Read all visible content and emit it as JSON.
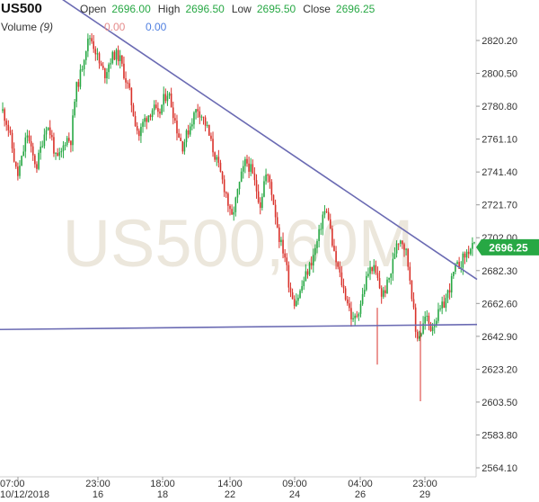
{
  "header": {
    "symbol": "US500",
    "open_label": "Open",
    "open": "2696.00",
    "high_label": "High",
    "high": "2696.50",
    "low_label": "Low",
    "low": "2695.50",
    "close_label": "Close",
    "close": "2696.25",
    "volume_label": "Volume",
    "volume_period": "(9)",
    "volume_value_1": "0.00",
    "volume_value_2": "0.00"
  },
  "watermark": "US500,60M",
  "chart_data": {
    "type": "candlestick",
    "title": "US500",
    "timeframe": "60M",
    "ylim": [
      2556,
      2840
    ],
    "y_ticks": [
      "2820.20",
      "2800.50",
      "2780.80",
      "2761.10",
      "2741.40",
      "2721.70",
      "2702.00",
      "2682.30",
      "2662.60",
      "2642.90",
      "2623.20",
      "2603.50",
      "2583.80",
      "2564.10"
    ],
    "x_ticks": [
      {
        "time": "07:00",
        "date": "10/12/2018"
      },
      {
        "time": "23:00",
        "date": "16"
      },
      {
        "time": "18:00",
        "date": "18"
      },
      {
        "time": "14:00",
        "date": "22"
      },
      {
        "time": "09:00",
        "date": "24"
      },
      {
        "time": "04:00",
        "date": "26"
      },
      {
        "time": "23:00",
        "date": "29"
      }
    ],
    "last_price": "2696.25",
    "colors": {
      "up": "#27a844",
      "down": "#d9322b",
      "trendline": "#6b6bb3",
      "price_tag": "#27a844"
    },
    "trendlines": [
      {
        "name": "descending-resistance",
        "from": {
          "x": 0.115,
          "y": 2845
        },
        "to": {
          "x": 0.885,
          "y": 2677
        }
      },
      {
        "name": "horizontal-support",
        "from": {
          "x": 0.0,
          "y": 2647
        },
        "to": {
          "x": 0.885,
          "y": 2650
        }
      }
    ],
    "series": [
      {
        "name": "US500",
        "values": [
          2778,
          2770,
          2755,
          2738,
          2750,
          2765,
          2752,
          2745,
          2758,
          2770,
          2763,
          2748,
          2752,
          2762,
          2760,
          2790,
          2800,
          2815,
          2823,
          2815,
          2805,
          2800,
          2808,
          2812,
          2810,
          2800,
          2790,
          2775,
          2763,
          2772,
          2776,
          2780,
          2774,
          2784,
          2790,
          2778,
          2765,
          2757,
          2765,
          2773,
          2780,
          2775,
          2768,
          2757,
          2748,
          2738,
          2728,
          2712,
          2725,
          2738,
          2748,
          2743,
          2733,
          2722,
          2740,
          2735,
          2718,
          2700,
          2692,
          2672,
          2664,
          2668,
          2677,
          2684,
          2692,
          2703,
          2718,
          2715,
          2693,
          2683,
          2672,
          2663,
          2651,
          2657,
          2667,
          2680,
          2685,
          2678,
          2667,
          2673,
          2683,
          2700,
          2702,
          2693,
          2673,
          2643,
          2645,
          2655,
          2648,
          2653,
          2658,
          2664,
          2673,
          2683,
          2686,
          2691,
          2695,
          2696.25
        ]
      }
    ]
  }
}
